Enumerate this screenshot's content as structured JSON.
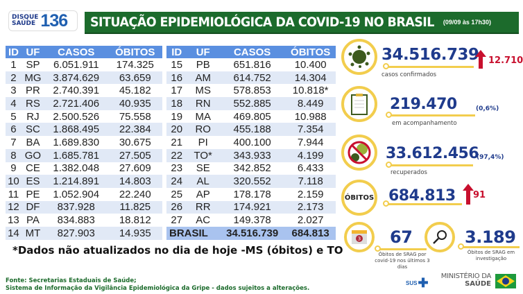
{
  "logo": {
    "line1": "DISQUE",
    "line2": "SAÚDE",
    "number": "136"
  },
  "header": {
    "title": "SITUAÇÃO EPIDEMIOLÓGICA DA COVID-19 NO BRASIL",
    "date": "(09/09 às 17h30)"
  },
  "table": {
    "columns": [
      "ID",
      "UF",
      "CASOS",
      "ÓBITOS"
    ],
    "rows": [
      [
        "1",
        "SP",
        "6.051.911",
        "174.325"
      ],
      [
        "2",
        "MG",
        "3.874.629",
        "63.659"
      ],
      [
        "3",
        "PR",
        "2.740.391",
        "45.182"
      ],
      [
        "4",
        "RS",
        "2.721.406",
        "40.935"
      ],
      [
        "5",
        "RJ",
        "2.500.526",
        "75.558"
      ],
      [
        "6",
        "SC",
        "1.868.495",
        "22.384"
      ],
      [
        "7",
        "BA",
        "1.689.830",
        "30.675"
      ],
      [
        "8",
        "GO",
        "1.685.781",
        "27.505"
      ],
      [
        "9",
        "CE",
        "1.382.048",
        "27.609"
      ],
      [
        "10",
        "ES",
        "1.214.891",
        "14.803"
      ],
      [
        "11",
        "PE",
        "1.052.904",
        "22.240"
      ],
      [
        "12",
        "DF",
        "837.928",
        "11.825"
      ],
      [
        "13",
        "PA",
        "834.883",
        "18.812"
      ],
      [
        "14",
        "MT",
        "827.903",
        "14.935"
      ],
      [
        "15",
        "PB",
        "651.816",
        "10.400"
      ],
      [
        "16",
        "AM",
        "614.752",
        "14.304"
      ],
      [
        "17",
        "MS",
        "578.853",
        "10.818*"
      ],
      [
        "18",
        "RN",
        "552.885",
        "8.449"
      ],
      [
        "19",
        "MA",
        "469.805",
        "10.988"
      ],
      [
        "20",
        "RO",
        "455.188",
        "7.354"
      ],
      [
        "21",
        "PI",
        "400.100",
        "7.944"
      ],
      [
        "22",
        "TO*",
        "343.933",
        "4.199"
      ],
      [
        "23",
        "SE",
        "342.852",
        "6.433"
      ],
      [
        "24",
        "AL",
        "320.552",
        "7.118"
      ],
      [
        "25",
        "AP",
        "178.178",
        "2.159"
      ],
      [
        "26",
        "RR",
        "174.921",
        "2.173"
      ],
      [
        "27",
        "AC",
        "149.378",
        "2.027"
      ]
    ],
    "total": {
      "label": "BRASIL",
      "casos": "34.516.739",
      "obitos": "684.813"
    }
  },
  "note": "*Dados não atualizados no dia de hoje -MS (óbitos) e TO",
  "source": {
    "line1": "Fonte: Secretarias Estaduais de Saúde;",
    "line2": "Sistema de Informação da Vigilância Epidemiológica da Gripe - dados sujeitos a alterações."
  },
  "stats": {
    "confirmed": {
      "value": "34.516.739",
      "increase": "12.710",
      "label": "casos confirmados"
    },
    "monitoring": {
      "value": "219.470",
      "pct": "(0,6%)",
      "label": "em acompanhamento"
    },
    "recovered": {
      "value": "33.612.456",
      "pct": "(97,4%)",
      "label": "recuperados"
    },
    "deaths": {
      "icon_label": "ÓBITOS",
      "value": "684.813",
      "increase": "91"
    },
    "srag3": {
      "value": "67",
      "label": "Óbitos de SRAG por covid-19 nos últimos 3 dias",
      "calendar_day": "3"
    },
    "sragInv": {
      "value": "3.189",
      "label": "Óbitos de SRAG em investigação"
    }
  },
  "footer": {
    "sus": "SUS",
    "ministry1": "MINISTÉRIO DA",
    "ministry2": "SAÚDE"
  },
  "colors": {
    "green": "#1c6b2c",
    "blue_header": "#5a8fe0",
    "navy": "#1f3b8c",
    "red": "#c8102e",
    "yellow": "#f2cd4d"
  }
}
